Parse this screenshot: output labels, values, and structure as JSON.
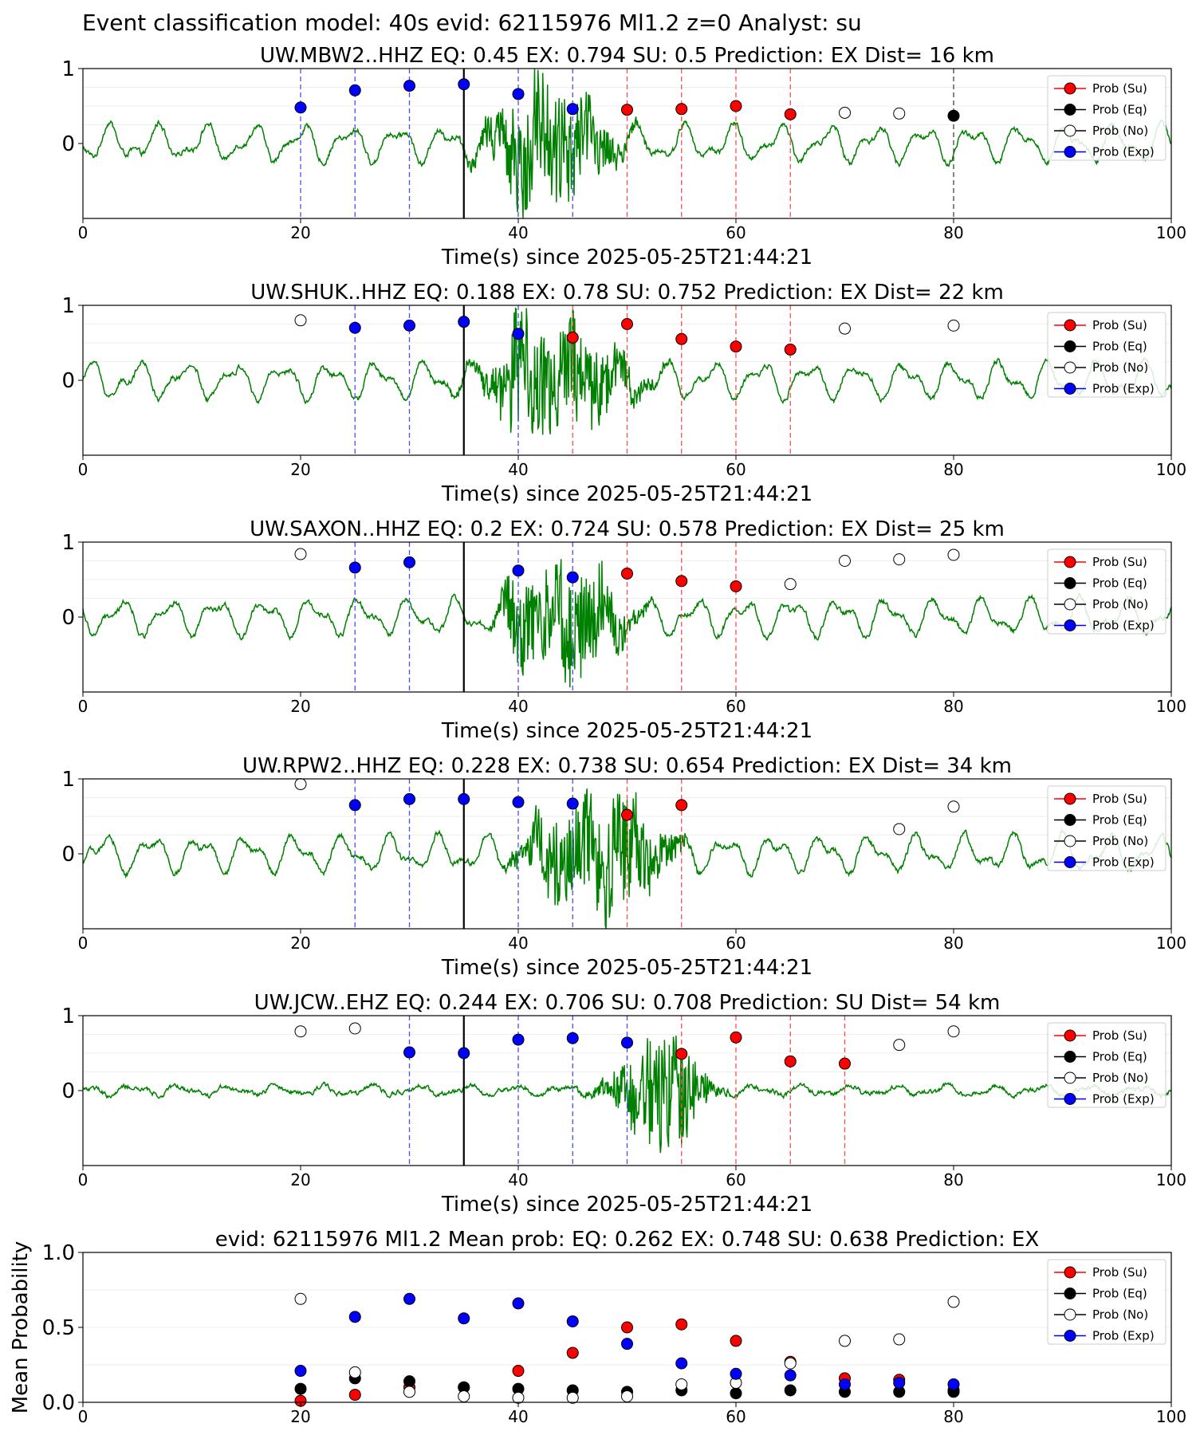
{
  "suptitle": "Event classification model: 40s evid: 62115976 Ml1.2 z=0 Analyst: su",
  "x_label": "Time(s) since 2025-05-25T21:44:21",
  "x_ticks": [
    "0",
    "20",
    "40",
    "60",
    "80",
    "100"
  ],
  "y_ticks_station": [
    "0",
    "1"
  ],
  "legend": [
    "Prob (Su)",
    "Prob (Eq)",
    "Prob (No)",
    "Prob (Exp)"
  ],
  "colors": {
    "su": "#ff0000",
    "eq": "#000000",
    "no": "#ffffff",
    "exp": "#0000ff",
    "trace": "#008000"
  },
  "chart_data": [
    {
      "type": "line",
      "title": "UW.MBW2..HHZ   EQ: 0.45  EX: 0.794  SU: 0.5   Prediction: EX    Dist= 16 km",
      "xlim": [
        0,
        100
      ],
      "ylim": [
        -1,
        1
      ],
      "pick_time": 35,
      "points": [
        {
          "x": 20,
          "y": 0.48,
          "cls": "exp"
        },
        {
          "x": 25,
          "y": 0.71,
          "cls": "exp"
        },
        {
          "x": 30,
          "y": 0.77,
          "cls": "exp"
        },
        {
          "x": 35,
          "y": 0.79,
          "cls": "exp"
        },
        {
          "x": 40,
          "y": 0.66,
          "cls": "exp"
        },
        {
          "x": 45,
          "y": 0.46,
          "cls": "exp"
        },
        {
          "x": 50,
          "y": 0.45,
          "cls": "su"
        },
        {
          "x": 55,
          "y": 0.46,
          "cls": "su"
        },
        {
          "x": 60,
          "y": 0.5,
          "cls": "su"
        },
        {
          "x": 65,
          "y": 0.39,
          "cls": "su"
        },
        {
          "x": 70,
          "y": 0.41,
          "cls": "no"
        },
        {
          "x": 75,
          "y": 0.4,
          "cls": "no"
        },
        {
          "x": 80,
          "y": 0.37,
          "cls": "eq"
        }
      ]
    },
    {
      "type": "line",
      "title": "UW.SHUK..HHZ   EQ: 0.188  EX: 0.78  SU: 0.752   Prediction: EX    Dist= 22 km",
      "xlim": [
        0,
        100
      ],
      "ylim": [
        -1,
        1
      ],
      "pick_time": 35,
      "points": [
        {
          "x": 20,
          "y": 0.8,
          "cls": "no"
        },
        {
          "x": 25,
          "y": 0.7,
          "cls": "exp"
        },
        {
          "x": 30,
          "y": 0.73,
          "cls": "exp"
        },
        {
          "x": 35,
          "y": 0.78,
          "cls": "exp"
        },
        {
          "x": 40,
          "y": 0.62,
          "cls": "exp"
        },
        {
          "x": 45,
          "y": 0.57,
          "cls": "su"
        },
        {
          "x": 50,
          "y": 0.75,
          "cls": "su"
        },
        {
          "x": 55,
          "y": 0.55,
          "cls": "su"
        },
        {
          "x": 60,
          "y": 0.45,
          "cls": "su"
        },
        {
          "x": 65,
          "y": 0.41,
          "cls": "su"
        },
        {
          "x": 70,
          "y": 0.69,
          "cls": "no"
        },
        {
          "x": 80,
          "y": 0.73,
          "cls": "no"
        }
      ]
    },
    {
      "type": "line",
      "title": "UW.SAXON..HHZ   EQ: 0.2  EX: 0.724  SU: 0.578   Prediction: EX    Dist= 25 km",
      "xlim": [
        0,
        100
      ],
      "ylim": [
        -1,
        1
      ],
      "pick_time": 35,
      "points": [
        {
          "x": 20,
          "y": 0.84,
          "cls": "no"
        },
        {
          "x": 25,
          "y": 0.66,
          "cls": "exp"
        },
        {
          "x": 30,
          "y": 0.73,
          "cls": "exp"
        },
        {
          "x": 40,
          "y": 0.62,
          "cls": "exp"
        },
        {
          "x": 45,
          "y": 0.53,
          "cls": "exp"
        },
        {
          "x": 50,
          "y": 0.58,
          "cls": "su"
        },
        {
          "x": 55,
          "y": 0.48,
          "cls": "su"
        },
        {
          "x": 60,
          "y": 0.41,
          "cls": "su"
        },
        {
          "x": 65,
          "y": 0.44,
          "cls": "no"
        },
        {
          "x": 70,
          "y": 0.75,
          "cls": "no"
        },
        {
          "x": 75,
          "y": 0.77,
          "cls": "no"
        },
        {
          "x": 80,
          "y": 0.83,
          "cls": "no"
        }
      ]
    },
    {
      "type": "line",
      "title": "UW.RPW2..HHZ   EQ: 0.228  EX: 0.738  SU: 0.654   Prediction: EX    Dist= 34 km",
      "xlim": [
        0,
        100
      ],
      "ylim": [
        -1,
        1
      ],
      "pick_time": 35,
      "points": [
        {
          "x": 20,
          "y": 0.93,
          "cls": "no"
        },
        {
          "x": 25,
          "y": 0.65,
          "cls": "exp"
        },
        {
          "x": 30,
          "y": 0.73,
          "cls": "exp"
        },
        {
          "x": 35,
          "y": 0.73,
          "cls": "exp"
        },
        {
          "x": 40,
          "y": 0.69,
          "cls": "exp"
        },
        {
          "x": 45,
          "y": 0.67,
          "cls": "exp"
        },
        {
          "x": 50,
          "y": 0.52,
          "cls": "su"
        },
        {
          "x": 55,
          "y": 0.65,
          "cls": "su"
        },
        {
          "x": 75,
          "y": 0.33,
          "cls": "no"
        },
        {
          "x": 80,
          "y": 0.63,
          "cls": "no"
        }
      ]
    },
    {
      "type": "line",
      "title": "UW.JCW..EHZ   EQ: 0.244  EX: 0.706  SU: 0.708   Prediction: SU    Dist= 54 km",
      "xlim": [
        0,
        100
      ],
      "ylim": [
        -1,
        1
      ],
      "pick_time": 35,
      "points": [
        {
          "x": 20,
          "y": 0.79,
          "cls": "no"
        },
        {
          "x": 25,
          "y": 0.83,
          "cls": "no"
        },
        {
          "x": 30,
          "y": 0.51,
          "cls": "exp"
        },
        {
          "x": 35,
          "y": 0.5,
          "cls": "exp"
        },
        {
          "x": 40,
          "y": 0.68,
          "cls": "exp"
        },
        {
          "x": 45,
          "y": 0.7,
          "cls": "exp"
        },
        {
          "x": 50,
          "y": 0.64,
          "cls": "exp"
        },
        {
          "x": 55,
          "y": 0.49,
          "cls": "su"
        },
        {
          "x": 60,
          "y": 0.71,
          "cls": "su"
        },
        {
          "x": 65,
          "y": 0.39,
          "cls": "su"
        },
        {
          "x": 70,
          "y": 0.36,
          "cls": "su"
        },
        {
          "x": 75,
          "y": 0.61,
          "cls": "no"
        },
        {
          "x": 80,
          "y": 0.79,
          "cls": "no"
        }
      ]
    },
    {
      "type": "scatter",
      "title": "evid: 62115976  Ml1.2   Mean prob:   EQ: 0.262  EX: 0.748  SU: 0.638   Prediction: EX",
      "ylabel": "Mean Probability",
      "xlim": [
        0,
        100
      ],
      "ylim": [
        0,
        1
      ],
      "y_ticks": [
        "0.0",
        "0.5",
        "1.0"
      ],
      "x": [
        20,
        25,
        30,
        35,
        40,
        45,
        50,
        55,
        60,
        65,
        70,
        75,
        80
      ],
      "series": [
        {
          "name": "Prob (Su)",
          "cls": "su",
          "values": [
            0.01,
            0.05,
            0.1,
            0.1,
            0.21,
            0.33,
            0.5,
            0.52,
            0.41,
            0.27,
            0.16,
            0.15,
            0.08
          ]
        },
        {
          "name": "Prob (Eq)",
          "cls": "eq",
          "values": [
            0.09,
            0.16,
            0.14,
            0.1,
            0.09,
            0.08,
            0.07,
            0.08,
            0.06,
            0.08,
            0.07,
            0.07,
            0.07
          ]
        },
        {
          "name": "Prob (No)",
          "cls": "no",
          "values": [
            0.69,
            0.2,
            0.07,
            0.04,
            0.03,
            0.03,
            0.04,
            0.12,
            0.13,
            0.26,
            0.41,
            0.42,
            0.67
          ]
        },
        {
          "name": "Prob (Exp)",
          "cls": "exp",
          "values": [
            0.21,
            0.57,
            0.69,
            0.56,
            0.66,
            0.54,
            0.39,
            0.26,
            0.19,
            0.18,
            0.12,
            0.13,
            0.12
          ]
        }
      ]
    }
  ]
}
